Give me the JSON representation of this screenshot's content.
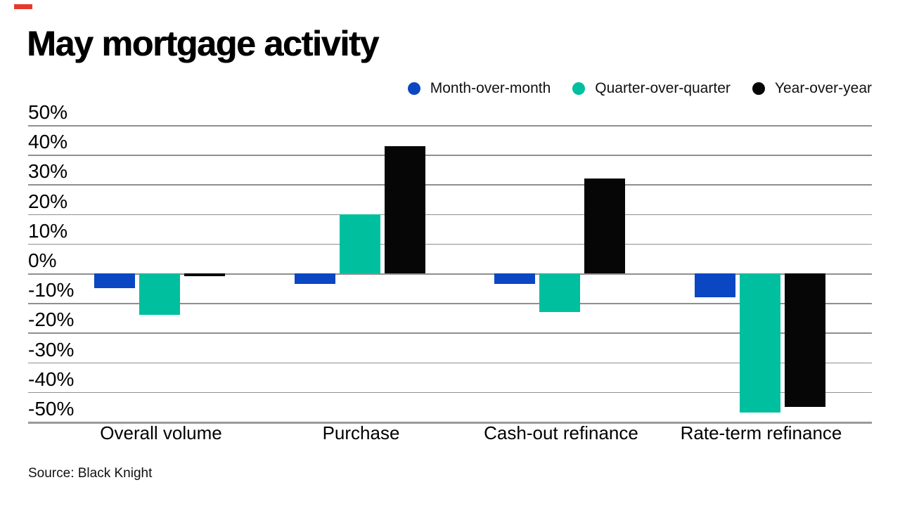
{
  "title": "May mortgage activity",
  "source": "Source: Black Knight",
  "brand": {
    "accent_color": "#e8382b"
  },
  "chart_data": {
    "type": "bar",
    "title": "May mortgage activity",
    "categories": [
      "Overall volume",
      "Purchase",
      "Cash-out refinance",
      "Rate-term refinance"
    ],
    "series": [
      {
        "name": "Month-over-month",
        "color": "#0b47c2",
        "values": [
          -5,
          -3.5,
          -3.5,
          -8
        ]
      },
      {
        "name": "Quarter-over-quarter",
        "color": "#00bf9e",
        "values": [
          -14,
          20,
          -13,
          -47
        ]
      },
      {
        "name": "Year-over-year",
        "color": "#060606",
        "values": [
          -1,
          43,
          32,
          -45
        ]
      }
    ],
    "xlabel": "",
    "ylabel": "",
    "ylim": [
      -50,
      50
    ],
    "ytick_step": 10,
    "ytick_format": "percent",
    "grid": "horizontal",
    "gridline_color": "#8f8f8f",
    "legend_position": "top-right",
    "source": "Source: Black Knight"
  }
}
